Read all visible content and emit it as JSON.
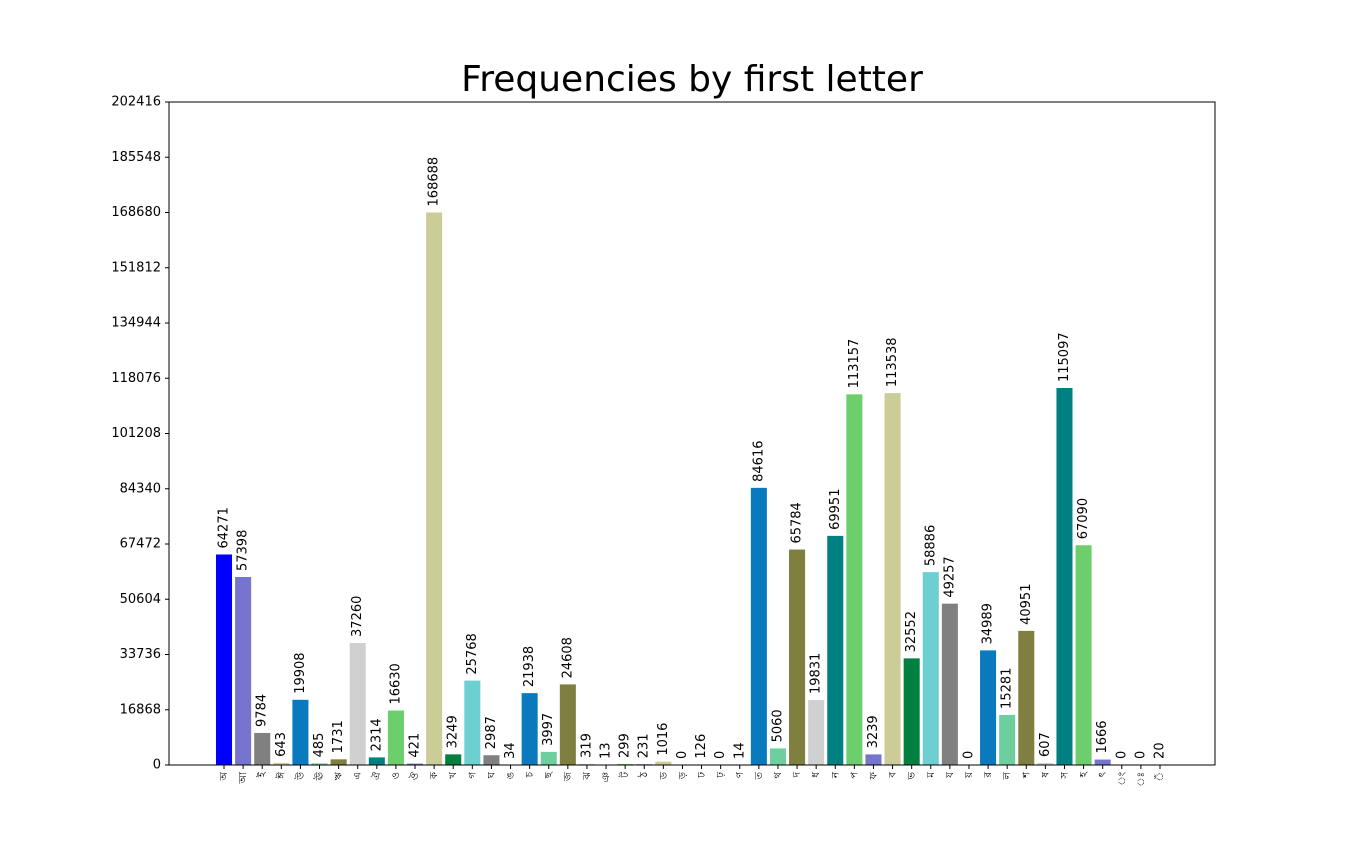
{
  "chart_data": {
    "type": "bar",
    "title": "Frequencies by first letter",
    "categories": [
      "অ",
      "আ",
      "ই",
      "ঈ",
      "উ",
      "ঊ",
      "ঋ",
      "এ",
      "ঐ",
      "ও",
      "ঔ",
      "ক",
      "খ",
      "গ",
      "ঘ",
      "ঙ",
      "চ",
      "ছ",
      "জ",
      "ঝ",
      "ঞ",
      "ট",
      "ঠ",
      "ড",
      "ড়",
      "ঢ",
      "ঢ়",
      "ণ",
      "ত",
      "থ",
      "দ",
      "ধ",
      "ন",
      "প",
      "ফ",
      "ব",
      "ভ",
      "ম",
      "য",
      "য়",
      "র",
      "ল",
      "শ",
      "ষ",
      "স",
      "হ",
      "ৎ",
      "ং",
      "ঃ",
      "ঁ"
    ],
    "values": [
      64271,
      57398,
      9784,
      643,
      19908,
      485,
      1731,
      37260,
      2314,
      16630,
      421,
      168688,
      3249,
      25768,
      2987,
      34,
      21938,
      3997,
      24608,
      319,
      13,
      299,
      231,
      1016,
      0,
      126,
      0,
      14,
      84616,
      5060,
      65784,
      19831,
      69951,
      113157,
      3239,
      113538,
      32552,
      58886,
      49257,
      0,
      34989,
      15281,
      40951,
      607,
      115097,
      67090,
      1666,
      0,
      0,
      20
    ],
    "colors": [
      "#0000ff",
      "#7575cf",
      "#808080",
      "#cccc99",
      "#0a7abf",
      "#6dcf9d",
      "#7f7f3f",
      "#d0d0d0",
      "#008080",
      "#6ccf6c",
      "#7575cf",
      "#cccc99",
      "#007f3f",
      "#6dcfcf",
      "#808080",
      "#cccc99",
      "#0a7abf",
      "#6dcf9d",
      "#7f7f3f",
      "#d0d0d0",
      "#6ccf6c",
      "#6ccf6c",
      "#7575cf",
      "#cccc99",
      "#0000ff",
      "#808080",
      "#d0d0d0",
      "#008080",
      "#0a7abf",
      "#6dcf9d",
      "#7f7f3f",
      "#d0d0d0",
      "#008080",
      "#6ccf6c",
      "#7575cf",
      "#cccc99",
      "#007f3f",
      "#6dcfcf",
      "#808080",
      "#0000ff",
      "#0a7abf",
      "#6dcf9d",
      "#7f7f3f",
      "#d0d0d0",
      "#008080",
      "#6ccf6c",
      "#7575cf",
      "#cccc99",
      "#0000ff",
      "#808080"
    ],
    "ylim": [
      0,
      202416
    ],
    "yticks": [
      0,
      16868,
      33736,
      50604,
      67472,
      84340,
      101208,
      118076,
      134944,
      151812,
      168680,
      185548,
      202416
    ]
  }
}
